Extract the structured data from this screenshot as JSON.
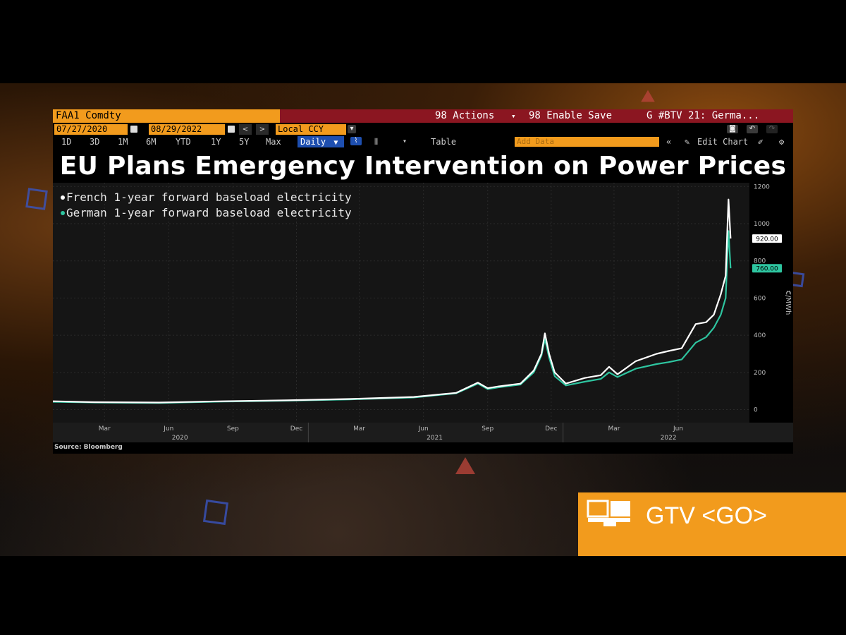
{
  "terminal": {
    "ticker": "FAA1 Comdty",
    "actions_label": "98 Actions",
    "actions_caret": "▾",
    "enable_save_label": "98 Enable Save",
    "tab_label": "G #BTV 21: Germa...",
    "start_date": "07/27/2020",
    "end_date": "08/29/2022",
    "currency": "Local CCY",
    "periods": [
      "1D",
      "3D",
      "1M",
      "6M",
      "YTD",
      "1Y",
      "5Y",
      "Max"
    ],
    "frequency": "Daily",
    "table_label": "Table",
    "add_data_placeholder": "Add Data",
    "edit_chart_label": "Edit Chart"
  },
  "headline": "EU Plans Emergency Intervention on Power Prices",
  "source": "Source: Bloomberg",
  "gtv": {
    "label": "GTV <GO>"
  },
  "colors": {
    "french": "#ffffff",
    "german": "#2ec5a0",
    "bloomberg_orange": "#f29b1d",
    "toolbar_red": "#8b1621"
  },
  "chart_data": {
    "type": "line",
    "legend": [
      "French 1-year forward baseload electricity",
      "German 1-year forward baseload electricity"
    ],
    "ylabel": "€/MWh",
    "ylim": [
      -70,
      1220
    ],
    "yticks": [
      0,
      200,
      400,
      600,
      800,
      1000,
      1200
    ],
    "x_month_labels": [
      "Mar",
      "Jun",
      "Sep",
      "Dec",
      "Mar",
      "Jun",
      "Sep",
      "Dec",
      "Mar",
      "Jun"
    ],
    "x_year_labels": [
      "2020",
      "2021",
      "2022"
    ],
    "last_values": {
      "french": "920.00",
      "german": "760.00"
    },
    "series": [
      {
        "name": "French 1-year forward baseload electricity",
        "x": [
          "2020-01-01",
          "2020-03-01",
          "2020-06-01",
          "2020-09-01",
          "2020-12-01",
          "2021-03-01",
          "2021-06-01",
          "2021-08-01",
          "2021-09-01",
          "2021-09-15",
          "2021-10-01",
          "2021-11-01",
          "2021-11-20",
          "2021-12-01",
          "2021-12-06",
          "2021-12-12",
          "2021-12-20",
          "2022-01-05",
          "2022-02-01",
          "2022-02-24",
          "2022-03-08",
          "2022-03-20",
          "2022-04-15",
          "2022-05-15",
          "2022-06-01",
          "2022-06-20",
          "2022-07-10",
          "2022-07-25",
          "2022-08-05",
          "2022-08-15",
          "2022-08-22",
          "2022-08-26",
          "2022-08-29"
        ],
        "y": [
          45,
          40,
          38,
          45,
          50,
          57,
          68,
          90,
          145,
          115,
          125,
          140,
          210,
          300,
          410,
          300,
          200,
          140,
          170,
          185,
          230,
          190,
          260,
          300,
          315,
          330,
          460,
          470,
          510,
          620,
          720,
          1130,
          920
        ]
      },
      {
        "name": "German 1-year forward baseload electricity",
        "x": [
          "2020-01-01",
          "2020-03-01",
          "2020-06-01",
          "2020-09-01",
          "2020-12-01",
          "2021-03-01",
          "2021-06-01",
          "2021-08-01",
          "2021-09-01",
          "2021-09-15",
          "2021-10-01",
          "2021-11-01",
          "2021-11-20",
          "2021-12-01",
          "2021-12-06",
          "2021-12-12",
          "2021-12-20",
          "2022-01-05",
          "2022-02-01",
          "2022-02-24",
          "2022-03-08",
          "2022-03-20",
          "2022-04-15",
          "2022-05-15",
          "2022-06-01",
          "2022-06-20",
          "2022-07-10",
          "2022-07-25",
          "2022-08-05",
          "2022-08-15",
          "2022-08-22",
          "2022-08-26",
          "2022-08-29"
        ],
        "y": [
          42,
          38,
          36,
          43,
          48,
          55,
          65,
          88,
          140,
          110,
          120,
          135,
          200,
          290,
          380,
          280,
          180,
          130,
          150,
          165,
          200,
          175,
          220,
          245,
          255,
          270,
          360,
          390,
          440,
          510,
          600,
          960,
          760
        ]
      }
    ]
  }
}
